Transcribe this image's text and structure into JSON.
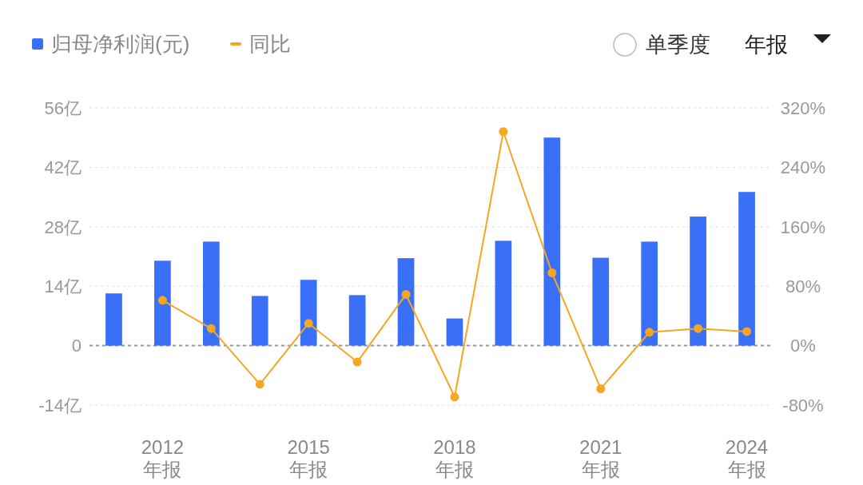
{
  "chart_data": {
    "type": "bar",
    "categories": [
      null,
      "2012\n年报",
      null,
      null,
      "2015\n年报",
      null,
      null,
      "2018\n年报",
      null,
      null,
      "2021\n年报",
      null,
      null,
      "2024\n年报"
    ],
    "series": [
      {
        "name": "归母净利润(元)",
        "color": "#3a6ff7",
        "values": [
          12.3,
          20.0,
          24.5,
          11.7,
          15.5,
          11.9,
          20.6,
          6.4,
          24.7,
          49.0,
          20.7,
          24.5,
          30.4,
          36.2
        ]
      },
      {
        "name": "同比",
        "type": "line",
        "axis": "y2",
        "color": "#f5a623",
        "values": [
          null,
          61,
          23,
          -52,
          30,
          -22,
          69,
          -69,
          288,
          98,
          -58,
          18,
          23,
          19
        ]
      }
    ],
    "ylim": [
      -14,
      56
    ],
    "yticks": [
      {
        "value": -14,
        "label": "-14亿"
      },
      0,
      {
        "value": 14,
        "label": "14亿"
      },
      {
        "value": 28,
        "label": "28亿"
      },
      {
        "value": 42,
        "label": "42亿"
      },
      {
        "value": 56,
        "label": "56亿"
      }
    ],
    "y2lim": [
      -80,
      320
    ],
    "y2ticks": [
      {
        "value": -80,
        "label": "-80%"
      },
      {
        "value": 0,
        "label": "0%"
      },
      {
        "value": 80,
        "label": "80%"
      },
      {
        "value": 160,
        "label": "160%"
      },
      {
        "value": 240,
        "label": "240%"
      },
      {
        "value": 320,
        "label": "320%"
      }
    ],
    "ref_lines": [
      {
        "axis": "y",
        "value": 0,
        "color": "#999999",
        "line_style": "dashed"
      }
    ],
    "grid": "y",
    "legend": "top left",
    "marker": "circle",
    "annotations": [
      "单季度",
      "年报"
    ]
  }
}
